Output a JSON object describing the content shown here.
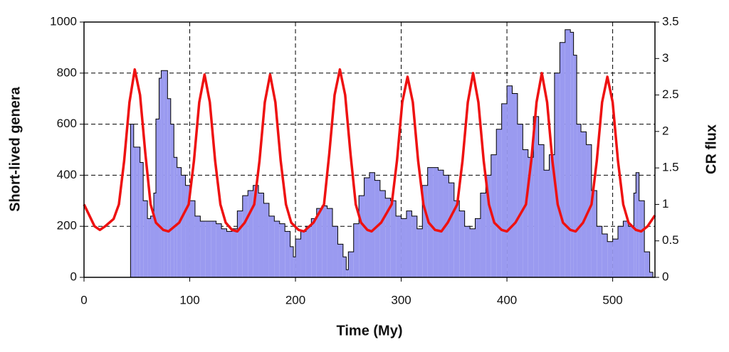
{
  "chart_data": {
    "type": "area",
    "xlabel": "Time (My)",
    "ylabel": "Short-lived genera",
    "y2label": "CR flux",
    "xlim": [
      0,
      540
    ],
    "ylim": [
      0,
      1000
    ],
    "y2lim": [
      0,
      3.5
    ],
    "xticks": [
      0,
      100,
      200,
      300,
      400,
      500
    ],
    "yticks": [
      0,
      200,
      400,
      600,
      800,
      1000
    ],
    "y2ticks": [
      0,
      0.5,
      1,
      1.5,
      2,
      2.5,
      3,
      3.5
    ],
    "grid": true,
    "series": [
      {
        "type": "area",
        "color": "#9a9af0",
        "x": [
          44,
          47,
          50,
          53,
          56,
          60,
          63,
          66,
          68,
          71,
          73,
          76,
          79,
          82,
          85,
          88,
          92,
          96,
          100,
          105,
          110,
          115,
          120,
          125,
          130,
          135,
          140,
          145,
          150,
          155,
          160,
          165,
          170,
          175,
          180,
          185,
          190,
          195,
          198,
          200,
          205,
          210,
          215,
          220,
          225,
          230,
          235,
          240,
          245,
          248,
          250,
          255,
          260,
          265,
          270,
          275,
          280,
          285,
          290,
          295,
          300,
          305,
          310,
          315,
          320,
          325,
          330,
          335,
          340,
          345,
          350,
          355,
          360,
          365,
          370,
          375,
          380,
          385,
          390,
          395,
          400,
          405,
          410,
          415,
          420,
          425,
          430,
          435,
          440,
          445,
          450,
          455,
          460,
          463,
          466,
          470,
          475,
          480,
          485,
          490,
          495,
          500,
          505,
          510,
          515,
          520,
          522,
          525,
          530,
          535,
          538
        ],
        "values": [
          600,
          510,
          510,
          450,
          300,
          230,
          240,
          330,
          620,
          780,
          810,
          810,
          700,
          600,
          470,
          430,
          400,
          360,
          300,
          240,
          220,
          220,
          220,
          210,
          190,
          180,
          190,
          260,
          320,
          340,
          360,
          330,
          290,
          240,
          220,
          210,
          180,
          120,
          80,
          150,
          180,
          200,
          230,
          270,
          280,
          270,
          200,
          130,
          80,
          30,
          100,
          210,
          320,
          390,
          410,
          380,
          340,
          310,
          300,
          240,
          230,
          260,
          240,
          190,
          360,
          430,
          430,
          420,
          400,
          370,
          300,
          260,
          200,
          190,
          230,
          330,
          400,
          480,
          580,
          680,
          750,
          720,
          600,
          500,
          470,
          630,
          520,
          420,
          480,
          800,
          920,
          970,
          960,
          870,
          600,
          570,
          520,
          340,
          200,
          170,
          140,
          150,
          200,
          220,
          200,
          330,
          410,
          300,
          100,
          20,
          0
        ]
      },
      {
        "type": "line",
        "color": "#ee1111",
        "axis": "y2",
        "x": [
          0,
          5,
          10,
          15,
          20,
          28,
          33,
          38,
          43,
          48,
          53,
          58,
          63,
          68,
          75,
          80,
          90,
          99,
          104,
          109,
          114,
          119,
          124,
          129,
          134,
          140,
          145,
          152,
          161,
          166,
          171,
          176,
          181,
          186,
          191,
          196,
          203,
          208,
          217,
          227,
          232,
          237,
          242,
          247,
          252,
          257,
          262,
          268,
          272,
          281,
          291,
          296,
          301,
          306,
          311,
          316,
          321,
          326,
          332,
          338,
          344,
          353,
          358,
          363,
          368,
          373,
          378,
          383,
          388,
          395,
          400,
          408,
          418,
          423,
          428,
          433,
          438,
          443,
          448,
          453,
          460,
          465,
          472,
          480,
          485,
          490,
          495,
          500,
          505,
          510,
          515,
          522,
          527,
          533,
          540
        ],
        "values": [
          1.0,
          0.85,
          0.7,
          0.65,
          0.7,
          0.8,
          1.0,
          1.6,
          2.4,
          2.85,
          2.5,
          1.7,
          1.0,
          0.75,
          0.65,
          0.63,
          0.75,
          1.0,
          1.6,
          2.4,
          2.78,
          2.4,
          1.6,
          1.0,
          0.75,
          0.65,
          0.63,
          0.75,
          1.0,
          1.6,
          2.4,
          2.78,
          2.4,
          1.6,
          1.0,
          0.75,
          0.65,
          0.63,
          0.75,
          1.0,
          1.7,
          2.5,
          2.85,
          2.5,
          1.7,
          1.0,
          0.75,
          0.65,
          0.63,
          0.75,
          1.0,
          1.6,
          2.4,
          2.75,
          2.4,
          1.6,
          1.0,
          0.75,
          0.65,
          0.63,
          0.75,
          1.0,
          1.6,
          2.4,
          2.8,
          2.4,
          1.6,
          1.0,
          0.75,
          0.65,
          0.63,
          0.75,
          1.0,
          1.6,
          2.4,
          2.8,
          2.4,
          1.6,
          1.0,
          0.75,
          0.65,
          0.63,
          0.75,
          1.0,
          1.6,
          2.4,
          2.75,
          2.4,
          1.6,
          1.0,
          0.75,
          0.65,
          0.63,
          0.7,
          0.85
        ]
      }
    ]
  }
}
